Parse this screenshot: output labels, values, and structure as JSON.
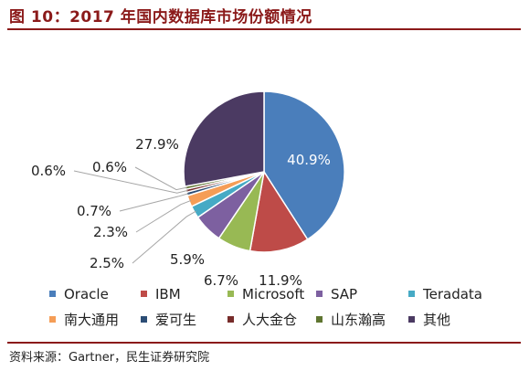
{
  "title": "图 10：2017 年国内数据库市场份额情况",
  "source": "资料来源：Gartner，民生证券研究院",
  "chart_data": {
    "type": "pie",
    "labels": [
      "Oracle",
      "IBM",
      "Microsoft",
      "SAP",
      "Teradata",
      "南大通用",
      "爱可生",
      "人大金仓",
      "山东瀚高",
      "其他"
    ],
    "values": [
      40.9,
      11.9,
      6.7,
      5.9,
      2.5,
      2.3,
      0.7,
      0.6,
      0.6,
      27.9
    ],
    "value_labels": [
      "40.9%",
      "11.9%",
      "6.7%",
      "5.9%",
      "2.5%",
      "2.3%",
      "0.7%",
      "0.6%",
      "0.6%",
      "27.9%"
    ],
    "colors": [
      "#4a7ebb",
      "#be4b48",
      "#98b954",
      "#7d60a0",
      "#46aac5",
      "#f59d56",
      "#2c4d75",
      "#772c2a",
      "#5f7530",
      "#4b3a62"
    ],
    "legend_position": "bottom",
    "start_angle": "12 o'clock, clockwise"
  }
}
